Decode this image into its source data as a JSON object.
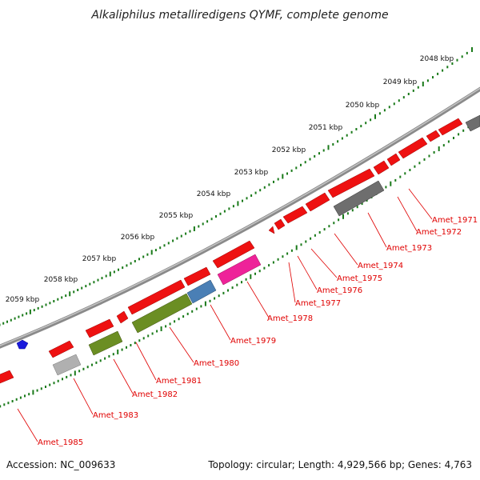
{
  "title": "Alkaliphilus metalliredigens QYMF, complete genome",
  "footer": {
    "accession": "Accession: NC_009633",
    "topology": "Topology: circular; Length: 4,929,566 bp; Genes: 4,763"
  },
  "colors": {
    "backbone": "#8c8c8c",
    "forward_gene": "#ee1111",
    "label_text": "#e00000",
    "tick": "#1a7a1a"
  },
  "kbp_ticks": [
    "2048 kbp",
    "2049 kbp",
    "2050 kbp",
    "2051 kbp",
    "2052 kbp",
    "2053 kbp",
    "2054 kbp",
    "2055 kbp",
    "2056 kbp",
    "2057 kbp",
    "2058 kbp",
    "2059 kbp"
  ],
  "genes": [
    {
      "id": "Amet_1971",
      "label": "Amet_1971",
      "color": "#ee1111"
    },
    {
      "id": "Amet_1972",
      "label": "Amet_1972",
      "color": "#ee1111"
    },
    {
      "id": "Amet_1973",
      "label": "Amet_1973",
      "color": "#6e6e6e"
    },
    {
      "id": "Amet_1974",
      "label": "Amet_1974",
      "color": "#ee1111"
    },
    {
      "id": "Amet_1975",
      "label": "Amet_1975",
      "color": "#ee1111"
    },
    {
      "id": "Amet_1976",
      "label": "Amet_1976",
      "color": "#ee1111"
    },
    {
      "id": "Amet_1977",
      "label": "Amet_1977",
      "color": "#ee1111"
    },
    {
      "id": "Amet_1978",
      "label": "Amet_1978",
      "color": "#ee2299"
    },
    {
      "id": "Amet_1979",
      "label": "Amet_1979",
      "color": "#4a7fb5"
    },
    {
      "id": "Amet_1980",
      "label": "Amet_1980",
      "color": "#6b8e23"
    },
    {
      "id": "Amet_1981",
      "label": "Amet_1981",
      "color": "#ee1111"
    },
    {
      "id": "Amet_1982",
      "label": "Amet_1982",
      "color": "#6b8e23"
    },
    {
      "id": "Amet_1983",
      "label": "Amet_1983",
      "color": "#b0b0b0"
    },
    {
      "id": "Amet_1985",
      "label": "Amet_1985",
      "color": "#ee1111"
    }
  ]
}
